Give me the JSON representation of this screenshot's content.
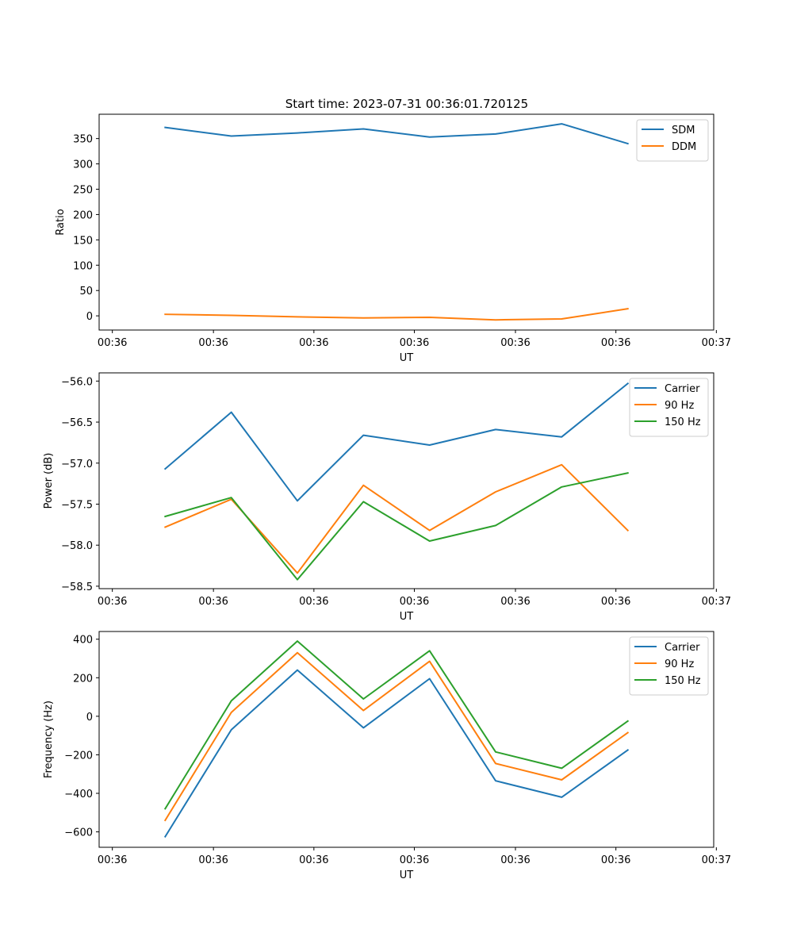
{
  "title": "Start time: 2023-07-31 00:36:01.720125",
  "colors": {
    "blue": "#1f77b4",
    "orange": "#ff7f0e",
    "green": "#2ca02c"
  },
  "chart_data": [
    {
      "type": "line",
      "title": "Start time: 2023-07-31 00:36:01.720125",
      "xlabel": "UT",
      "ylabel": "Ratio",
      "x": [
        1,
        2,
        3,
        4,
        5,
        6,
        7,
        8
      ],
      "xlim": [
        0,
        9.3
      ],
      "xticks": [
        0.2,
        1.73,
        3.25,
        4.77,
        6.3,
        7.82,
        9.34
      ],
      "xtick_labels": [
        "00:36",
        "00:36",
        "00:36",
        "00:36",
        "00:36",
        "00:36",
        "00:37"
      ],
      "ylim": [
        -28,
        398
      ],
      "yticks": [
        0,
        50,
        100,
        150,
        200,
        250,
        300,
        350
      ],
      "ytick_labels": [
        "0",
        "50",
        "100",
        "150",
        "200",
        "250",
        "300",
        "350"
      ],
      "legend_position": "top-right",
      "series": [
        {
          "name": "SDM",
          "color": "#1f77b4",
          "values": [
            372,
            355,
            361,
            369,
            353,
            359,
            379,
            340
          ]
        },
        {
          "name": "DDM",
          "color": "#ff7f0e",
          "values": [
            3,
            1,
            -2,
            -4,
            -3,
            -8,
            -6,
            14
          ]
        }
      ]
    },
    {
      "type": "line",
      "xlabel": "UT",
      "ylabel": "Power (dB)",
      "x": [
        1,
        2,
        3,
        4,
        5,
        6,
        7,
        8
      ],
      "xlim": [
        0,
        9.3
      ],
      "xticks": [
        0.2,
        1.73,
        3.25,
        4.77,
        6.3,
        7.82,
        9.34
      ],
      "xtick_labels": [
        "00:36",
        "00:36",
        "00:36",
        "00:36",
        "00:36",
        "00:36",
        "00:37"
      ],
      "ylim": [
        -58.53,
        -55.9
      ],
      "yticks": [
        -58.5,
        -58.0,
        -57.5,
        -57.0,
        -56.5,
        -56.0
      ],
      "ytick_labels": [
        "−58.5",
        "−58.0",
        "−57.5",
        "−57.0",
        "−56.5",
        "−56.0"
      ],
      "legend_position": "top-right",
      "series": [
        {
          "name": "Carrier",
          "color": "#1f77b4",
          "values": [
            -57.07,
            -56.38,
            -57.46,
            -56.66,
            -56.78,
            -56.59,
            -56.68,
            -56.03
          ]
        },
        {
          "name": "90 Hz",
          "color": "#ff7f0e",
          "values": [
            -57.78,
            -57.44,
            -58.34,
            -57.27,
            -57.82,
            -57.35,
            -57.02,
            -57.82
          ]
        },
        {
          "name": "150 Hz",
          "color": "#2ca02c",
          "values": [
            -57.65,
            -57.42,
            -58.42,
            -57.47,
            -57.95,
            -57.76,
            -57.29,
            -57.12
          ]
        }
      ]
    },
    {
      "type": "line",
      "xlabel": "UT",
      "ylabel": "Frequency (Hz)",
      "x": [
        1,
        2,
        3,
        4,
        5,
        6,
        7,
        8
      ],
      "xlim": [
        0,
        9.3
      ],
      "xticks": [
        0.2,
        1.73,
        3.25,
        4.77,
        6.3,
        7.82,
        9.34
      ],
      "xtick_labels": [
        "00:36",
        "00:36",
        "00:36",
        "00:36",
        "00:36",
        "00:36",
        "00:37"
      ],
      "ylim": [
        -680,
        440
      ],
      "yticks": [
        -600,
        -400,
        -200,
        0,
        200,
        400
      ],
      "ytick_labels": [
        "−600",
        "−400",
        "−200",
        "0",
        "200",
        "400"
      ],
      "legend_position": "top-right",
      "series": [
        {
          "name": "Carrier",
          "color": "#1f77b4",
          "values": [
            -625,
            -70,
            240,
            -60,
            195,
            -335,
            -420,
            -175
          ]
        },
        {
          "name": "90 Hz",
          "color": "#ff7f0e",
          "values": [
            -540,
            20,
            330,
            30,
            285,
            -245,
            -330,
            -85
          ]
        },
        {
          "name": "150 Hz",
          "color": "#2ca02c",
          "values": [
            -480,
            80,
            390,
            90,
            340,
            -185,
            -270,
            -25
          ]
        }
      ]
    }
  ]
}
